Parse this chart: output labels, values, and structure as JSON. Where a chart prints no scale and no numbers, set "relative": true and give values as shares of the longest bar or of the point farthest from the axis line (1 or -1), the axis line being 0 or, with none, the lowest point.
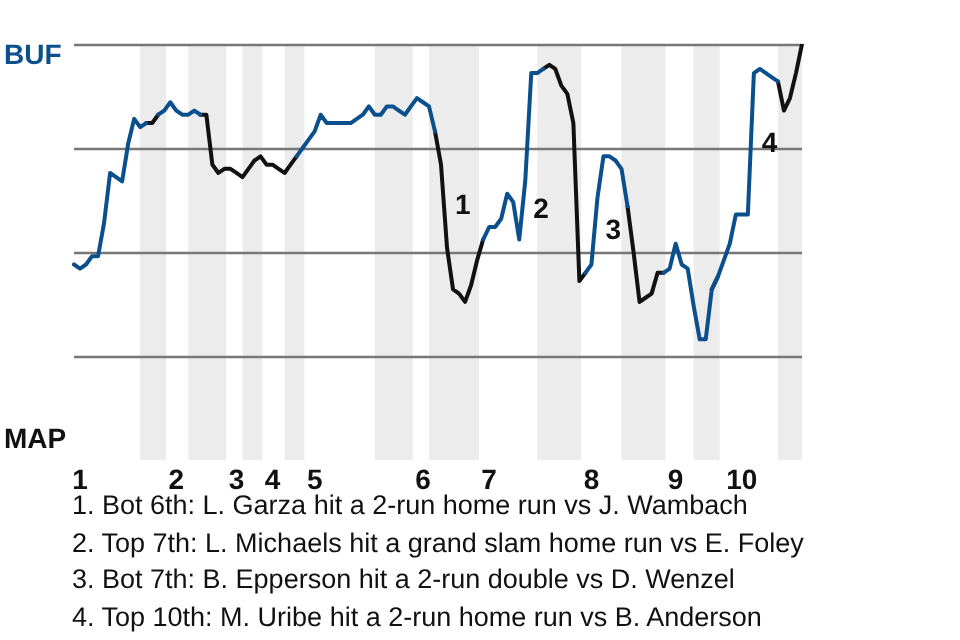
{
  "chart_data": {
    "type": "line",
    "relative": true,
    "categories": [
      null,
      "1",
      null,
      null,
      null,
      null,
      null,
      null,
      null,
      null,
      null,
      null,
      null,
      null,
      null,
      null,
      null,
      "2",
      null,
      null,
      null,
      null,
      null,
      null,
      null,
      null,
      null,
      "3",
      null,
      null,
      null,
      null,
      null,
      "4",
      null,
      null,
      null,
      null,
      null,
      null,
      "5",
      null,
      null,
      null,
      null,
      null,
      null,
      null,
      null,
      null,
      null,
      null,
      null,
      null,
      null,
      null,
      null,
      null,
      "6",
      null,
      null,
      null,
      null,
      null,
      null,
      null,
      null,
      null,
      null,
      "7",
      null,
      null,
      null,
      null,
      null,
      null,
      null,
      null,
      null,
      null,
      null,
      null,
      null,
      null,
      null,
      null,
      "8",
      null,
      null,
      null,
      null,
      null,
      null,
      null,
      null,
      null,
      null,
      null,
      null,
      null,
      "9",
      null,
      null,
      null,
      null,
      null,
      null,
      null,
      null,
      null,
      null,
      "10",
      null,
      null,
      null,
      null,
      null,
      null,
      null,
      null,
      null,
      null
    ],
    "legend": false,
    "marker": "none",
    "line_style": "solid",
    "ref_lines": [
      {
        "axis": "y",
        "value": 1,
        "color": "#777777"
      },
      {
        "axis": "y",
        "value": 0.5,
        "color": "#777777"
      },
      {
        "axis": "y",
        "value": 0,
        "color": "#777777"
      },
      {
        "axis": "y",
        "value": -0.5,
        "color": "#777777"
      }
    ],
    "series": [
      {
        "color": "#0b4f8c",
        "values": [
          -0.06,
          -0.08,
          -0.06,
          -0.02,
          -0.02,
          0.14,
          0.38,
          0.36,
          0.34,
          0.52,
          0.64,
          0.6,
          0.62,
          null,
          0.66,
          0.68,
          0.72,
          0.68,
          0.66,
          0.66,
          0.68,
          0.66,
          null,
          null,
          null,
          null,
          null,
          null,
          null,
          null,
          null,
          null,
          null,
          null,
          null,
          null,
          null,
          0.46,
          0.5,
          0.54,
          0.58,
          0.66,
          0.62,
          0.62,
          0.62,
          0.62,
          0.62,
          0.64,
          0.66,
          0.7,
          0.66,
          0.66,
          0.7,
          0.7,
          0.68,
          0.66,
          0.7,
          0.74,
          0.72,
          0.7,
          0.58,
          null,
          null,
          null,
          null,
          null,
          null,
          null,
          0.06,
          0.12,
          0.12,
          0.16,
          0.28,
          0.24,
          0.06,
          0.34,
          0.86,
          0.86,
          0.88,
          null,
          null,
          null,
          null,
          null,
          null,
          -0.1,
          -0.06,
          0.26,
          0.46,
          0.46,
          0.44,
          0.4,
          0.22,
          null,
          null,
          null,
          null,
          null,
          -0.1,
          -0.08,
          0.04,
          -0.06,
          -0.08,
          -0.26,
          -0.42,
          -0.42,
          -0.18,
          -0.12,
          -0.04,
          0.04,
          0.18,
          0.18,
          0.18,
          0.86,
          0.88,
          0.86,
          0.84,
          0.82,
          null,
          null,
          null,
          null
        ]
      },
      {
        "color": "#111111",
        "values": [
          null,
          null,
          null,
          null,
          null,
          null,
          null,
          null,
          null,
          null,
          null,
          null,
          0.62,
          0.62,
          0.66,
          null,
          null,
          null,
          null,
          null,
          null,
          0.66,
          0.66,
          0.42,
          0.38,
          0.4,
          0.4,
          0.38,
          0.36,
          0.4,
          0.44,
          0.46,
          0.42,
          0.42,
          0.4,
          0.38,
          0.42,
          0.46,
          null,
          null,
          null,
          null,
          null,
          null,
          null,
          null,
          null,
          null,
          null,
          null,
          null,
          null,
          null,
          null,
          null,
          null,
          null,
          null,
          null,
          null,
          0.58,
          0.42,
          0.02,
          -0.18,
          -0.2,
          -0.24,
          -0.16,
          -0.04,
          0.06,
          null,
          null,
          null,
          null,
          null,
          null,
          null,
          null,
          null,
          0.88,
          0.9,
          0.88,
          0.8,
          0.76,
          0.62,
          -0.14,
          -0.1,
          null,
          null,
          null,
          null,
          null,
          null,
          0.22,
          0,
          -0.24,
          -0.22,
          -0.2,
          -0.1,
          -0.1,
          null,
          null,
          null,
          null,
          null,
          null,
          null,
          -0.18,
          -0.12,
          null,
          null,
          null,
          null,
          null,
          null,
          null,
          null,
          null,
          0.82,
          0.68,
          0.74,
          0.86,
          1
        ]
      }
    ],
    "annotations": [
      "BUF",
      "MAP",
      "1",
      "2",
      "3",
      "4",
      "1. Bot 6th: L. Garza hit a 2-run home run vs J. Wambach",
      "2. Top 7th: L. Michaels hit a grand slam home run vs E. Foley",
      "3. Bot 7th: B. Epperson hit a 2-run double vs D. Wenzel",
      "4. Top 10th: M. Uribe hit a 2-run home run vs B. Anderson"
    ]
  }
}
